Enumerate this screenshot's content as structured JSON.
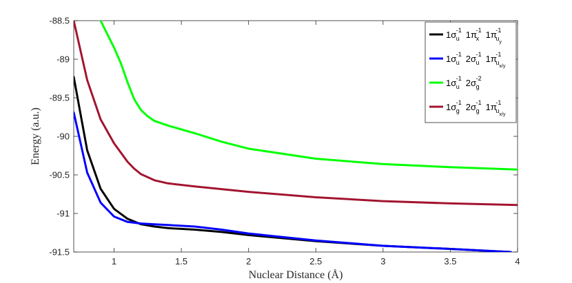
{
  "chart_data": {
    "type": "line",
    "xlabel": "Nuclear Distance (Å)",
    "ylabel": "Energy (a.u.)",
    "xlim": [
      0.7,
      4.0
    ],
    "ylim": [
      -91.5,
      -88.5
    ],
    "xticks": [
      1,
      1.5,
      2,
      2.5,
      3,
      3.5,
      4
    ],
    "xtick_labels": [
      "1",
      "1.5",
      "2",
      "2.5",
      "3",
      "3.5",
      "4"
    ],
    "yticks": [
      -88.5,
      -89,
      -89.5,
      -90,
      -90.5,
      -91,
      -91.5
    ],
    "ytick_labels": [
      "-88.5",
      "-89",
      "-89.5",
      "-90",
      "-90.5",
      "-91",
      "-91.5"
    ],
    "grid": false,
    "legend_position": "top-right",
    "series": [
      {
        "id": "black",
        "color": "#000000",
        "legend": [
          {
            "base": "1σ",
            "sup": "-1",
            "sub": "u"
          },
          {
            "base": "1π",
            "sup": "-1",
            "sub": "x"
          },
          {
            "base": "1π",
            "sup": "-1",
            "sub": "u",
            "subsub": "y"
          }
        ],
        "x": [
          0.7,
          0.8,
          0.9,
          1.0,
          1.1,
          1.2,
          1.3,
          1.4,
          1.6,
          1.8,
          2.0,
          2.5,
          3.0,
          3.5,
          3.95
        ],
        "y": [
          -89.23,
          -90.18,
          -90.68,
          -90.94,
          -91.07,
          -91.14,
          -91.17,
          -91.19,
          -91.21,
          -91.24,
          -91.28,
          -91.36,
          -91.42,
          -91.46,
          -91.5
        ]
      },
      {
        "id": "blue",
        "color": "#0000ff",
        "legend": [
          {
            "base": "1σ",
            "sup": "-1",
            "sub": "u"
          },
          {
            "base": "2σ",
            "sup": "-1",
            "sub": "u"
          },
          {
            "base": "1π",
            "sup": "-1",
            "sub": "u",
            "subsub": "x/y"
          }
        ],
        "x": [
          0.7,
          0.8,
          0.9,
          1.0,
          1.1,
          1.2,
          1.3,
          1.4,
          1.6,
          1.8,
          2.0,
          2.5,
          3.0,
          3.5,
          3.95
        ],
        "y": [
          -89.69,
          -90.47,
          -90.86,
          -91.04,
          -91.11,
          -91.13,
          -91.14,
          -91.15,
          -91.17,
          -91.21,
          -91.26,
          -91.35,
          -91.42,
          -91.46,
          -91.5
        ]
      },
      {
        "id": "green",
        "color": "#00ff00",
        "legend": [
          {
            "base": "1σ",
            "sup": "-1",
            "sub": "u"
          },
          {
            "base": "2σ",
            "sup": "-2",
            "sub": "g"
          }
        ],
        "x": [
          0.9,
          1.0,
          1.05,
          1.1,
          1.15,
          1.2,
          1.25,
          1.3,
          1.4,
          1.6,
          1.8,
          2.0,
          2.5,
          3.0,
          3.5,
          4.0
        ],
        "y": [
          -88.5,
          -88.85,
          -89.05,
          -89.3,
          -89.52,
          -89.66,
          -89.74,
          -89.8,
          -89.86,
          -89.96,
          -90.07,
          -90.16,
          -90.29,
          -90.36,
          -90.4,
          -90.43
        ]
      },
      {
        "id": "darkred",
        "color": "#a2142f",
        "legend": [
          {
            "base": "1σ",
            "sup": "-1",
            "sub": "g"
          },
          {
            "base": "2σ",
            "sup": "-1",
            "sub": "g"
          },
          {
            "base": "1π",
            "sup": "-1",
            "sub": "u",
            "subsub": "x/y"
          }
        ],
        "x": [
          0.7,
          0.8,
          0.9,
          1.0,
          1.1,
          1.15,
          1.2,
          1.3,
          1.4,
          1.6,
          2.0,
          2.5,
          3.0,
          3.5,
          4.0
        ],
        "y": [
          -88.5,
          -89.27,
          -89.78,
          -90.09,
          -90.33,
          -90.42,
          -90.49,
          -90.57,
          -90.61,
          -90.65,
          -90.72,
          -90.79,
          -90.84,
          -90.87,
          -90.89
        ]
      }
    ]
  }
}
